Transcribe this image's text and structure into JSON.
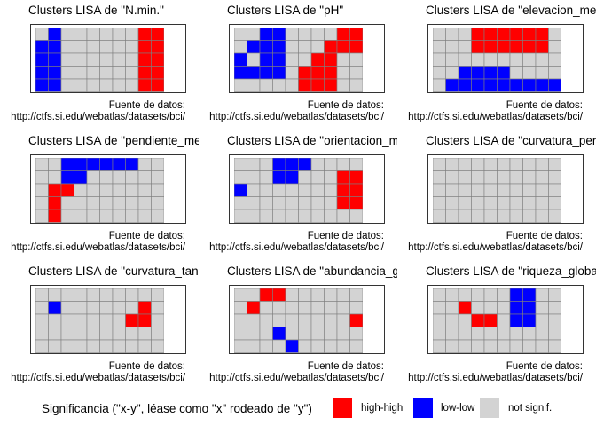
{
  "source_label": "Fuente de datos:",
  "source_url": "http://ctfs.si.edu/webatlas/datasets/bci/",
  "colors": {
    "high_high": "#ff0000",
    "low_low": "#0000ff",
    "not_signif": "#d3d3d3",
    "grid": "#7f7f7f"
  },
  "chart_data": [
    {
      "type": "heatmap",
      "title": "Clusters LISA de \"N.min.\"",
      "rows": 5,
      "cols": 10,
      "high_high": [
        [
          0,
          8
        ],
        [
          0,
          9
        ],
        [
          1,
          8
        ],
        [
          1,
          9
        ],
        [
          2,
          8
        ],
        [
          2,
          9
        ],
        [
          3,
          8
        ],
        [
          3,
          9
        ],
        [
          4,
          8
        ],
        [
          4,
          9
        ]
      ],
      "low_low": [
        [
          0,
          1
        ],
        [
          1,
          0
        ],
        [
          1,
          1
        ],
        [
          2,
          0
        ],
        [
          2,
          1
        ],
        [
          3,
          0
        ],
        [
          3,
          1
        ],
        [
          4,
          0
        ],
        [
          4,
          1
        ]
      ]
    },
    {
      "type": "heatmap",
      "title": "Clusters LISA de \"pH\"",
      "rows": 5,
      "cols": 10,
      "high_high": [
        [
          0,
          8
        ],
        [
          0,
          9
        ],
        [
          1,
          7
        ],
        [
          1,
          8
        ],
        [
          1,
          9
        ],
        [
          2,
          6
        ],
        [
          2,
          7
        ],
        [
          3,
          5
        ],
        [
          3,
          6
        ],
        [
          3,
          7
        ],
        [
          4,
          5
        ],
        [
          4,
          6
        ],
        [
          4,
          7
        ]
      ],
      "low_low": [
        [
          0,
          2
        ],
        [
          0,
          3
        ],
        [
          1,
          1
        ],
        [
          1,
          2
        ],
        [
          1,
          3
        ],
        [
          2,
          0
        ],
        [
          2,
          2
        ],
        [
          2,
          3
        ],
        [
          3,
          0
        ],
        [
          3,
          1
        ],
        [
          3,
          2
        ],
        [
          3,
          3
        ]
      ]
    },
    {
      "type": "heatmap",
      "title": "Clusters LISA de \"elevacion_media\"",
      "rows": 5,
      "cols": 10,
      "high_high": [
        [
          0,
          3
        ],
        [
          0,
          4
        ],
        [
          0,
          5
        ],
        [
          0,
          6
        ],
        [
          0,
          7
        ],
        [
          0,
          8
        ],
        [
          1,
          3
        ],
        [
          1,
          4
        ],
        [
          1,
          5
        ],
        [
          1,
          6
        ],
        [
          1,
          7
        ],
        [
          1,
          8
        ]
      ],
      "low_low": [
        [
          3,
          2
        ],
        [
          3,
          3
        ],
        [
          3,
          4
        ],
        [
          3,
          5
        ],
        [
          4,
          1
        ],
        [
          4,
          2
        ],
        [
          4,
          3
        ],
        [
          4,
          4
        ],
        [
          4,
          5
        ],
        [
          4,
          6
        ],
        [
          4,
          7
        ],
        [
          4,
          8
        ],
        [
          4,
          9
        ]
      ]
    },
    {
      "type": "heatmap",
      "title": "Clusters LISA de \"pendiente_media\"",
      "rows": 5,
      "cols": 10,
      "high_high": [
        [
          2,
          1
        ],
        [
          2,
          2
        ],
        [
          3,
          1
        ],
        [
          4,
          1
        ]
      ],
      "low_low": [
        [
          0,
          2
        ],
        [
          0,
          3
        ],
        [
          0,
          4
        ],
        [
          0,
          5
        ],
        [
          0,
          6
        ],
        [
          0,
          7
        ],
        [
          1,
          2
        ],
        [
          1,
          3
        ]
      ]
    },
    {
      "type": "heatmap",
      "title": "Clusters LISA de \"orientacion_media\"",
      "rows": 5,
      "cols": 10,
      "high_high": [
        [
          1,
          8
        ],
        [
          1,
          9
        ],
        [
          2,
          8
        ],
        [
          2,
          9
        ],
        [
          3,
          8
        ],
        [
          3,
          9
        ]
      ],
      "low_low": [
        [
          0,
          3
        ],
        [
          0,
          4
        ],
        [
          0,
          5
        ],
        [
          1,
          3
        ],
        [
          1,
          4
        ],
        [
          2,
          0
        ]
      ]
    },
    {
      "type": "heatmap",
      "title": "Clusters LISA de \"curvatura_perfil\"",
      "rows": 5,
      "cols": 10,
      "high_high": [],
      "low_low": []
    },
    {
      "type": "heatmap",
      "title": "Clusters LISA de \"curvatura_tangencial\"",
      "rows": 5,
      "cols": 10,
      "high_high": [
        [
          1,
          8
        ],
        [
          2,
          7
        ],
        [
          2,
          8
        ]
      ],
      "low_low": [
        [
          1,
          1
        ]
      ]
    },
    {
      "type": "heatmap",
      "title": "Clusters LISA de \"abundancia_global\"",
      "rows": 5,
      "cols": 10,
      "high_high": [
        [
          0,
          2
        ],
        [
          0,
          3
        ],
        [
          1,
          1
        ],
        [
          2,
          9
        ]
      ],
      "low_low": [
        [
          3,
          3
        ],
        [
          4,
          4
        ]
      ]
    },
    {
      "type": "heatmap",
      "title": "Clusters LISA de \"riqueza_global\"",
      "rows": 5,
      "cols": 10,
      "high_high": [
        [
          1,
          2
        ],
        [
          2,
          3
        ],
        [
          2,
          4
        ]
      ],
      "low_low": [
        [
          0,
          6
        ],
        [
          0,
          7
        ],
        [
          1,
          6
        ],
        [
          1,
          7
        ],
        [
          2,
          6
        ],
        [
          2,
          7
        ]
      ]
    }
  ],
  "legend": {
    "title": "Significancia (\"x-y\", léase como \"x\" rodeado de \"y\")",
    "items": [
      {
        "key": "high_high",
        "label": "high-high"
      },
      {
        "key": "low_low",
        "label": "low-low"
      },
      {
        "key": "not_signif",
        "label": "not signif."
      }
    ]
  }
}
